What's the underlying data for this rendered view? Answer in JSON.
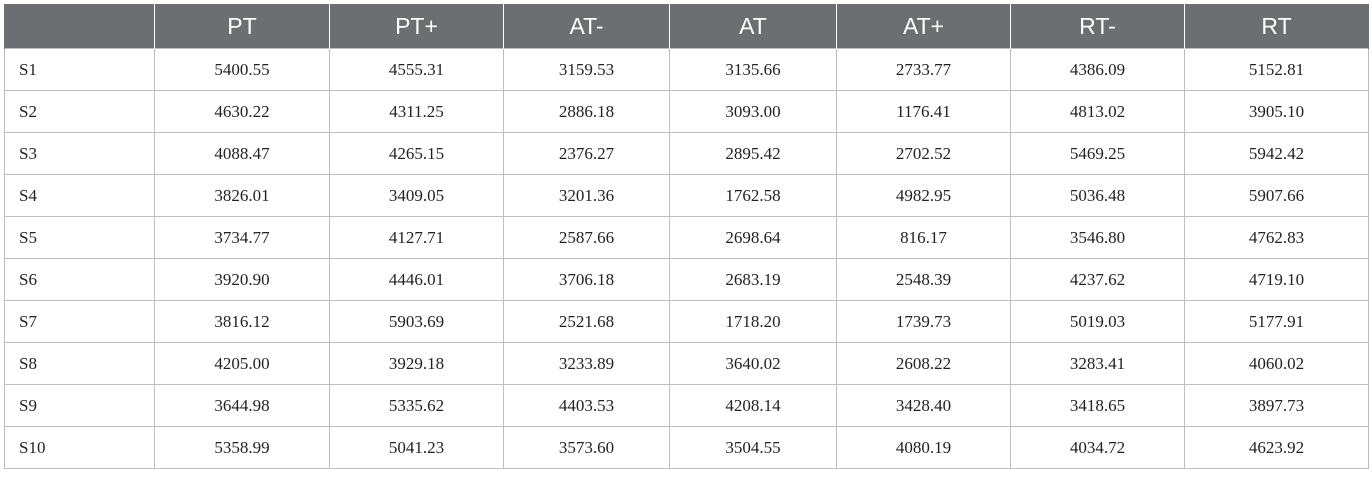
{
  "table": {
    "headers": [
      "",
      "PT",
      "PT+",
      "AT-",
      "AT",
      "AT+",
      "RT-",
      "RT"
    ],
    "rows": [
      {
        "label": "S1",
        "values": [
          "5400.55",
          "4555.31",
          "3159.53",
          "3135.66",
          "2733.77",
          "4386.09",
          "5152.81"
        ]
      },
      {
        "label": "S2",
        "values": [
          "4630.22",
          "4311.25",
          "2886.18",
          "3093.00",
          "1176.41",
          "4813.02",
          "3905.10"
        ]
      },
      {
        "label": "S3",
        "values": [
          "4088.47",
          "4265.15",
          "2376.27",
          "2895.42",
          "2702.52",
          "5469.25",
          "5942.42"
        ]
      },
      {
        "label": "S4",
        "values": [
          "3826.01",
          "3409.05",
          "3201.36",
          "1762.58",
          "4982.95",
          "5036.48",
          "5907.66"
        ]
      },
      {
        "label": "S5",
        "values": [
          "3734.77",
          "4127.71",
          "2587.66",
          "2698.64",
          "816.17",
          "3546.80",
          "4762.83"
        ]
      },
      {
        "label": "S6",
        "values": [
          "3920.90",
          "4446.01",
          "3706.18",
          "2683.19",
          "2548.39",
          "4237.62",
          "4719.10"
        ]
      },
      {
        "label": "S7",
        "values": [
          "3816.12",
          "5903.69",
          "2521.68",
          "1718.20",
          "1739.73",
          "5019.03",
          "5177.91"
        ]
      },
      {
        "label": "S8",
        "values": [
          "4205.00",
          "3929.18",
          "3233.89",
          "3640.02",
          "2608.22",
          "3283.41",
          "4060.02"
        ]
      },
      {
        "label": "S9",
        "values": [
          "3644.98",
          "5335.62",
          "4403.53",
          "4208.14",
          "3428.40",
          "3418.65",
          "3897.73"
        ]
      },
      {
        "label": "S10",
        "values": [
          "5358.99",
          "5041.23",
          "3573.60",
          "3504.55",
          "4080.19",
          "4034.72",
          "4623.92"
        ]
      }
    ]
  },
  "colors": {
    "header_background": "#6d6e71",
    "header_text": "#ffffff",
    "grid_line": "#bdbdbd",
    "cell_text": "#222222"
  }
}
